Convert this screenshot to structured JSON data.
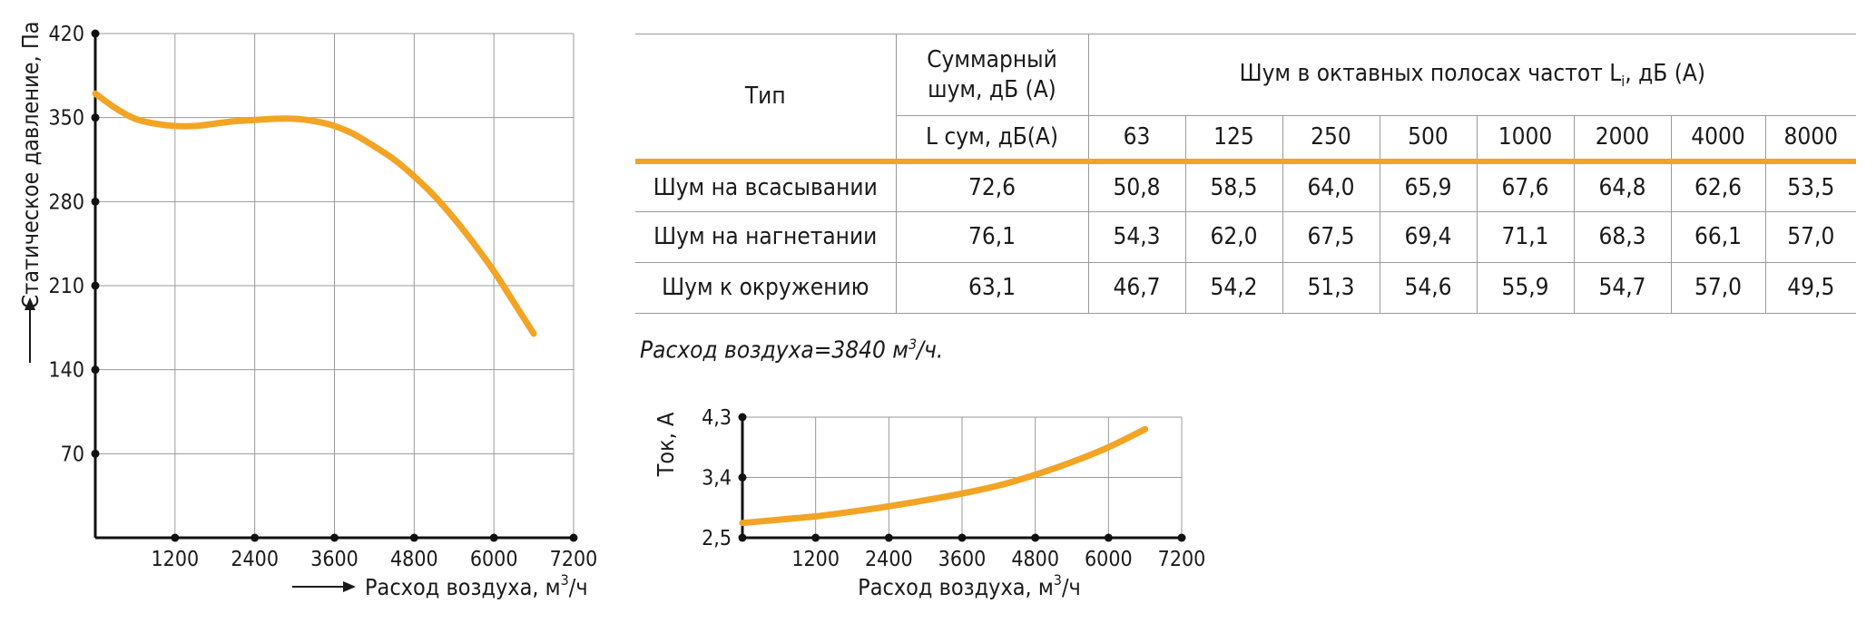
{
  "pressure_chart": {
    "ylabel": "Статическое давление, Па",
    "xlabel_prefix": "Расход воздуха, м",
    "xlabel_sup": "3",
    "xlabel_suffix": "/ч",
    "y_tick_labels": [
      "420",
      "350",
      "280",
      "210",
      "140",
      "70"
    ],
    "x_tick_labels": [
      "1200",
      "2400",
      "3600",
      "4800",
      "6000",
      "7200"
    ]
  },
  "current_chart": {
    "ylabel": "Ток, А",
    "xlabel_prefix": "Расход воздуха, м",
    "xlabel_sup": "3",
    "xlabel_suffix": "/ч",
    "y_tick_labels": [
      "4,3",
      "3,4",
      "2,5"
    ],
    "x_tick_labels": [
      "1200",
      "2400",
      "3600",
      "4800",
      "6000",
      "7200"
    ]
  },
  "chart_data": [
    {
      "type": "line",
      "ylabel": "Статическое давление, Па",
      "xlabel": "Расход воздуха, м³/ч",
      "xlim": [
        0,
        7200
      ],
      "ylim": [
        0,
        420
      ],
      "x_ticks": [
        1200,
        2400,
        3600,
        4800,
        6000,
        7200
      ],
      "y_ticks": [
        70,
        140,
        210,
        280,
        350,
        420
      ],
      "grid": true,
      "line_color": "#f2a425",
      "series": [
        {
          "x": [
            0,
            300,
            600,
            900,
            1200,
            1500,
            1800,
            2100,
            2400,
            2700,
            3000,
            3300,
            3600,
            3900,
            4200,
            4500,
            4800,
            5100,
            5400,
            5700,
            6000,
            6300,
            6600
          ],
          "values": [
            370,
            358,
            349,
            345,
            343,
            343,
            345,
            347,
            348,
            349,
            349,
            347,
            343,
            336,
            326,
            315,
            301,
            285,
            266,
            245,
            222,
            196,
            170
          ]
        }
      ]
    },
    {
      "type": "line",
      "ylabel": "Ток, А",
      "xlabel": "Расход воздуха, м³/ч",
      "xlim": [
        0,
        7200
      ],
      "ylim": [
        2.5,
        4.3
      ],
      "x_ticks": [
        1200,
        2400,
        3600,
        4800,
        6000,
        7200
      ],
      "y_ticks": [
        2.5,
        3.4,
        4.3
      ],
      "grid": true,
      "line_color": "#f2a425",
      "series": [
        {
          "x": [
            0,
            600,
            1200,
            1800,
            2400,
            3000,
            3600,
            4200,
            4800,
            5400,
            6000,
            6600
          ],
          "values": [
            2.72,
            2.77,
            2.82,
            2.89,
            2.97,
            3.06,
            3.16,
            3.28,
            3.44,
            3.63,
            3.85,
            4.12
          ]
        }
      ]
    }
  ],
  "noise_table": {
    "type_header": "Тип",
    "total_header_line1": "Суммарный",
    "total_header_line2": "шум, дБ (А)",
    "total_subheader": "L сум, дБ(А)",
    "octave_header_prefix": "Шум в октавных полосах частот L",
    "octave_header_sub": "i",
    "octave_header_suffix": ", дБ (А)",
    "bands": [
      "63",
      "125",
      "250",
      "500",
      "1000",
      "2000",
      "4000",
      "8000"
    ],
    "rows": [
      {
        "type": "Шум на всасывании",
        "total": "72,6",
        "bands": [
          "50,8",
          "58,5",
          "64,0",
          "65,9",
          "67,6",
          "64,8",
          "62,6",
          "53,5"
        ]
      },
      {
        "type": "Шум на нагнетании",
        "total": "76,1",
        "bands": [
          "54,3",
          "62,0",
          "67,5",
          "69,4",
          "71,1",
          "68,3",
          "66,1",
          "57,0"
        ]
      },
      {
        "type": "Шум к окружению",
        "total": "63,1",
        "bands": [
          "46,7",
          "54,2",
          "51,3",
          "54,6",
          "55,9",
          "54,7",
          "57,0",
          "49,5"
        ]
      }
    ]
  },
  "flow_note": {
    "text": "Расход воздуха=3840 м",
    "sup": "3",
    "suffix": "/ч."
  }
}
